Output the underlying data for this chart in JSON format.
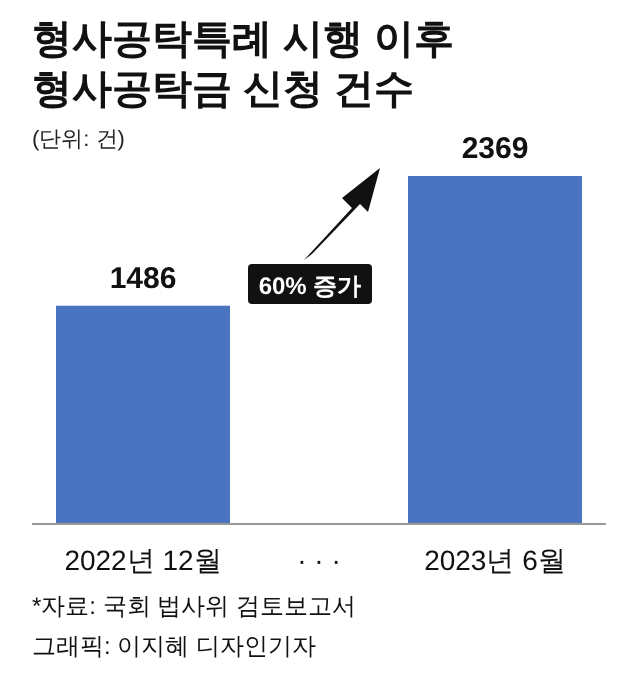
{
  "chart_data": {
    "type": "bar",
    "title": "형사공탁특례 시행 이후\n형사공탁금 신청 건수",
    "subtitle": "(단위: 건)",
    "categories": [
      "2022년 12월",
      "· · ·",
      "2023년 6월"
    ],
    "values": [
      1486,
      null,
      2369
    ],
    "color": "#4a74bf",
    "data_labels": true,
    "annotations": [
      "60% 증가",
      "*자료: 국회 법사위 검토보고서",
      "그래픽: 이지혜 디자인기자"
    ]
  }
}
